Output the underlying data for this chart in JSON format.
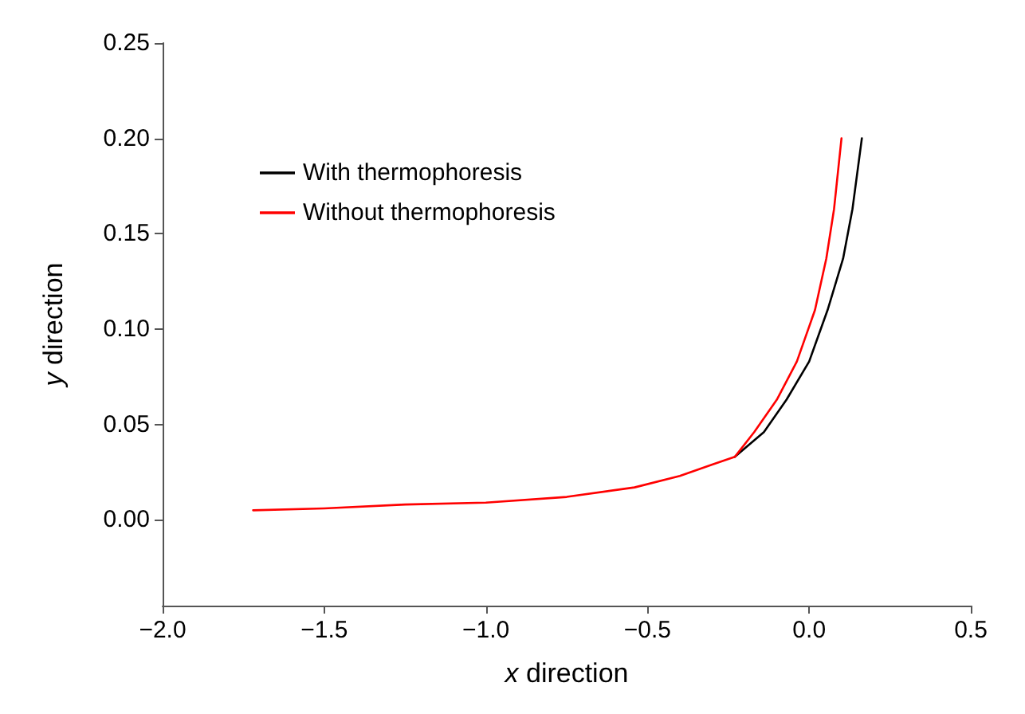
{
  "chart_data": {
    "type": "line",
    "xlabel": "x direction",
    "ylabel": "y direction",
    "xlim": [
      -2.0,
      0.5
    ],
    "xticks": [
      {
        "value": -2,
        "label": "−2.0"
      },
      {
        "value": -1.5,
        "label": "−1.5"
      },
      {
        "value": -1,
        "label": "−1.0"
      },
      {
        "value": -0.5,
        "label": "−0.5"
      },
      {
        "value": 0,
        "label": "0.0"
      },
      {
        "value": 0.5,
        "label": "0.5"
      }
    ],
    "ylim": [
      -0.045,
      0.25
    ],
    "yticks": [
      {
        "value": 0,
        "label": "0.00"
      },
      {
        "value": 0.05,
        "label": "0.05"
      },
      {
        "value": 0.1,
        "label": "0.10"
      },
      {
        "value": 0.15,
        "label": "0.15"
      },
      {
        "value": 0.2,
        "label": "0.20"
      },
      {
        "value": 0.25,
        "label": "0.25"
      }
    ],
    "grid": false,
    "legend": "top left",
    "marker": "none",
    "line_style": "solid",
    "series": [
      {
        "name": "With thermophoresis",
        "color": "#000000",
        "x": [
          -0.23,
          -0.14,
          -0.07,
          0.0,
          0.057,
          0.105,
          0.134,
          0.163
        ],
        "values": [
          0.033,
          0.046,
          0.063,
          0.083,
          0.11,
          0.137,
          0.163,
          0.2
        ]
      },
      {
        "name": "Without thermophoresis",
        "color": "#ff0000",
        "x": [
          -1.72,
          -1.5,
          -1.25,
          -1.0,
          -0.75,
          -0.54,
          -0.4,
          -0.3,
          -0.23,
          -0.17,
          -0.1,
          -0.038,
          0.018,
          0.053,
          0.077,
          0.1
        ],
        "values": [
          0.005,
          0.006,
          0.008,
          0.009,
          0.012,
          0.017,
          0.023,
          0.029,
          0.033,
          0.046,
          0.063,
          0.083,
          0.11,
          0.137,
          0.163,
          0.2
        ]
      }
    ]
  }
}
